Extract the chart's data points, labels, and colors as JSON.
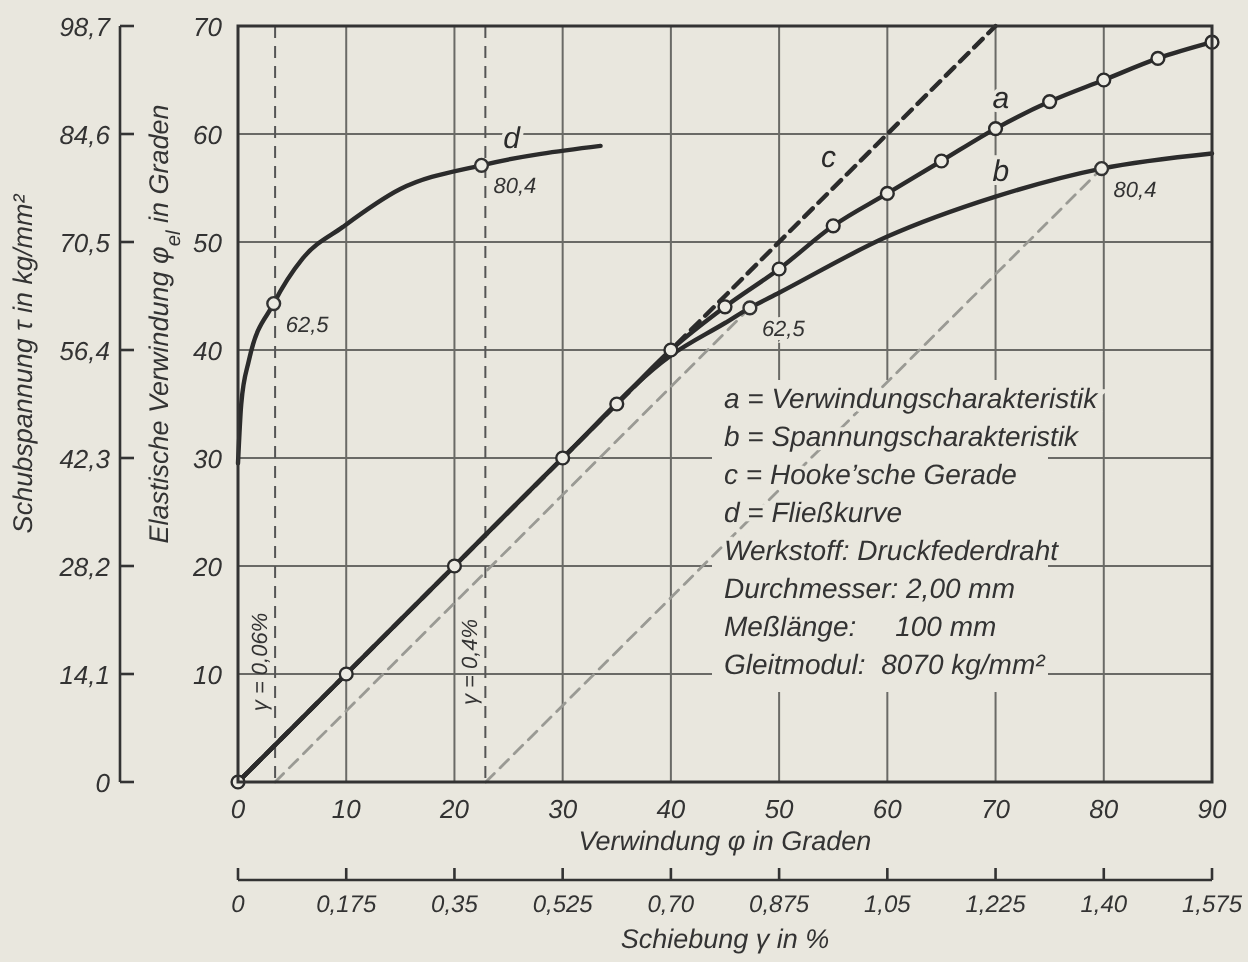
{
  "chart_data": {
    "type": "line",
    "xlabel": "Verwindung φ in Graden",
    "ylabel": "Elastische Verwindung φ$_{el}$ in Graden",
    "y2label": "Schubspannung τ in kg/mm²",
    "x2label": "Schiebung γ in %",
    "xlim": [
      0,
      90
    ],
    "xticks": [
      0,
      10,
      20,
      30,
      40,
      50,
      60,
      70,
      80,
      90
    ],
    "ylim": [
      0,
      70
    ],
    "yticks": [
      {
        "value": 0,
        "label": null
      },
      10,
      20,
      30,
      40,
      50,
      60,
      70
    ],
    "y2lim": [
      0,
      98.7
    ],
    "y2ticks": [
      0,
      {
        "value": 14.1,
        "label": "14,1"
      },
      {
        "value": 28.2,
        "label": "28,2"
      },
      {
        "value": 42.3,
        "label": "42,3"
      },
      {
        "value": 56.4,
        "label": "56,4"
      },
      {
        "value": 70.5,
        "label": "70,5"
      },
      {
        "value": 84.6,
        "label": "84,6"
      },
      {
        "value": 98.7,
        "label": "98,7"
      }
    ],
    "x2lim": [
      0,
      1.575
    ],
    "x2ticks": [
      0,
      {
        "value": 0.175,
        "label": "0,175"
      },
      {
        "value": 0.35,
        "label": "0,35"
      },
      {
        "value": 0.525,
        "label": "0,525"
      },
      {
        "value": 0.7,
        "label": "0,70"
      },
      {
        "value": 0.875,
        "label": "0,875"
      },
      {
        "value": 1.05,
        "label": "1,05"
      },
      {
        "value": 1.225,
        "label": "1,225"
      },
      {
        "value": 1.4,
        "label": "1,40"
      },
      {
        "value": 1.575,
        "label": "1,575"
      }
    ],
    "grid": true,
    "series": [
      {
        "name": "a",
        "color": "#2b2b2b",
        "marker": "circle",
        "x": [
          0,
          10,
          20,
          30,
          35,
          40,
          45,
          50,
          55,
          60,
          65,
          70,
          75,
          80,
          85,
          90
        ],
        "values": [
          0,
          10,
          20,
          30,
          35,
          40,
          44,
          47.5,
          51.5,
          54.5,
          57.5,
          60.5,
          63,
          65,
          67,
          68.5
        ]
      },
      {
        "name": "b",
        "color": "#2b2b2b",
        "x": [
          0,
          10,
          20,
          30,
          40,
          45,
          47.3,
          50,
          60,
          70,
          79.8,
          90
        ],
        "values": [
          0,
          10,
          20,
          30,
          39.5,
          42.5,
          43.9,
          45.3,
          50.5,
          54.2,
          56.8,
          58.2
        ]
      },
      {
        "name": "c",
        "color": "#2b2b2b",
        "line_style": "dashed",
        "x": [
          0,
          70
        ],
        "values": [
          0,
          70
        ]
      },
      {
        "name": "d",
        "color": "#2b2b2b",
        "x": [
          0,
          0.3,
          1,
          3.3,
          6,
          9.7,
          15,
          22.5,
          33.5
        ],
        "values": [
          29.5,
          35,
          39,
          44.3,
          48.5,
          51.4,
          54.9,
          57.1,
          58.9
        ]
      },
      {
        "color": "#9a9a94",
        "line_style": "dashed",
        "x": [
          3.43,
          47.3
        ],
        "values": [
          0,
          43.9
        ]
      },
      {
        "color": "#9a9a94",
        "line_style": "dashed",
        "x": [
          22.9,
          79.8
        ],
        "values": [
          0,
          56.8
        ]
      }
    ],
    "ref_lines": [
      {
        "axis": "x2",
        "value": 0.06,
        "label": "γ = 0,06%",
        "line_style": "dashed",
        "color": "#555555"
      },
      {
        "axis": "x2",
        "value": 0.4,
        "label": "γ = 0,4%",
        "line_style": "dashed",
        "color": "#555555"
      }
    ],
    "annotations": [
      {
        "text": "62,5",
        "x": 3.3,
        "y": 44.3
      },
      {
        "text": "80,4",
        "x": 22.5,
        "y": 57.1
      },
      {
        "text": "62,5",
        "x": 47.3,
        "y": 43.9
      },
      {
        "text": "80,4",
        "x": 79.8,
        "y": 56.8
      },
      "a = Verwindungscharakteristik",
      "b = Spannungscharakteristik",
      "c = Hooke’sche Gerade",
      "d = Fließkurve",
      "Werkstoff: Druckfederdraht",
      "Durchmesser: 2,00 mm",
      "Meßlänge:     100 mm",
      "Gleitmodul:  8070 kg/mm²"
    ]
  }
}
